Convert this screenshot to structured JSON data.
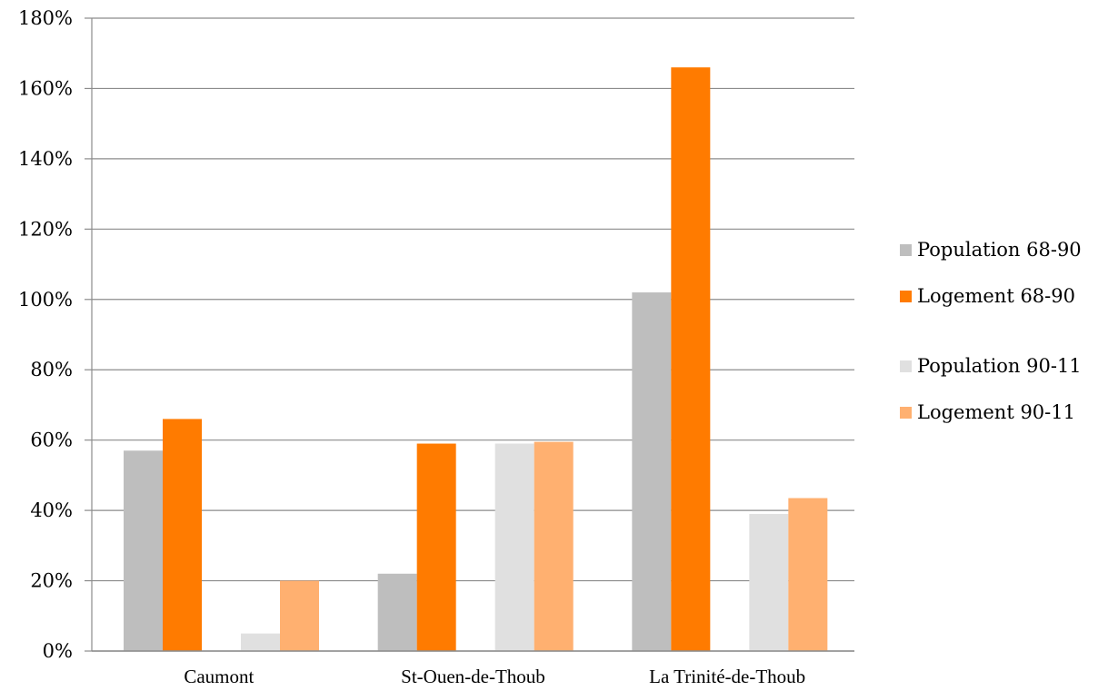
{
  "chart_data": {
    "type": "bar",
    "title": "",
    "xlabel": "",
    "ylabel": "",
    "ylim": [
      0,
      180
    ],
    "y_ticks": [
      "0%",
      "20%",
      "40%",
      "60%",
      "80%",
      "100%",
      "120%",
      "140%",
      "160%",
      "180%"
    ],
    "categories": [
      "Caumont",
      "St-Ouen-de-Thoub",
      "La Trinité-de-Thoub"
    ],
    "series": [
      {
        "name": "Population 68-90",
        "color": "#bebebe",
        "values": [
          57,
          22,
          102
        ]
      },
      {
        "name": "Logement 68-90",
        "color": "#ff7b00",
        "values": [
          66,
          59,
          166
        ]
      },
      {
        "name": "Population 90-11",
        "color": "#e0e0e0",
        "values": [
          5,
          59,
          39
        ]
      },
      {
        "name": "Logement 90-11",
        "color": "#ffb070",
        "values": [
          20,
          59.5,
          43.5
        ]
      }
    ],
    "grid": true,
    "legend_position": "right"
  }
}
